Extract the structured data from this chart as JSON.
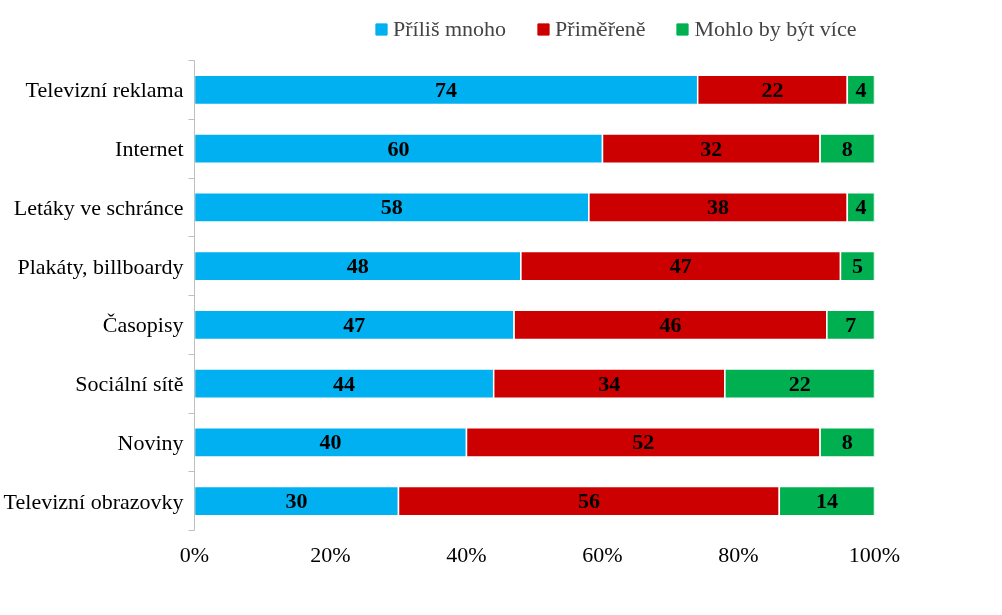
{
  "chart_data": {
    "type": "bar",
    "orientation": "horizontal",
    "stacked": true,
    "data_labels": true,
    "legend": "top",
    "grid": false,
    "categories": [
      "Televizní reklama",
      "Internet",
      "Letáky ve schránce",
      "Plakáty, billboardy",
      "Časopisy",
      "Sociální sítě",
      "Noviny",
      "Televizní obrazovky"
    ],
    "series": [
      {
        "name": "Příliš mnoho",
        "color": "#00b0f0",
        "values": [
          74,
          60,
          58,
          48,
          47,
          44,
          40,
          30
        ]
      },
      {
        "name": "Přiměřeně",
        "color": "#cc0000",
        "values": [
          22,
          32,
          38,
          47,
          46,
          34,
          52,
          56
        ]
      },
      {
        "name": "Mohlo by být více",
        "color": "#00b050",
        "values": [
          4,
          8,
          4,
          5,
          7,
          22,
          8,
          14
        ]
      }
    ],
    "xlim": [
      0,
      100
    ],
    "xticks": [
      {
        "value": 0,
        "label": "0%"
      },
      {
        "value": 20,
        "label": "20%"
      },
      {
        "value": 40,
        "label": "40%"
      },
      {
        "value": 60,
        "label": "60%"
      },
      {
        "value": 80,
        "label": "80%"
      },
      {
        "value": 100,
        "label": "100%"
      }
    ]
  }
}
